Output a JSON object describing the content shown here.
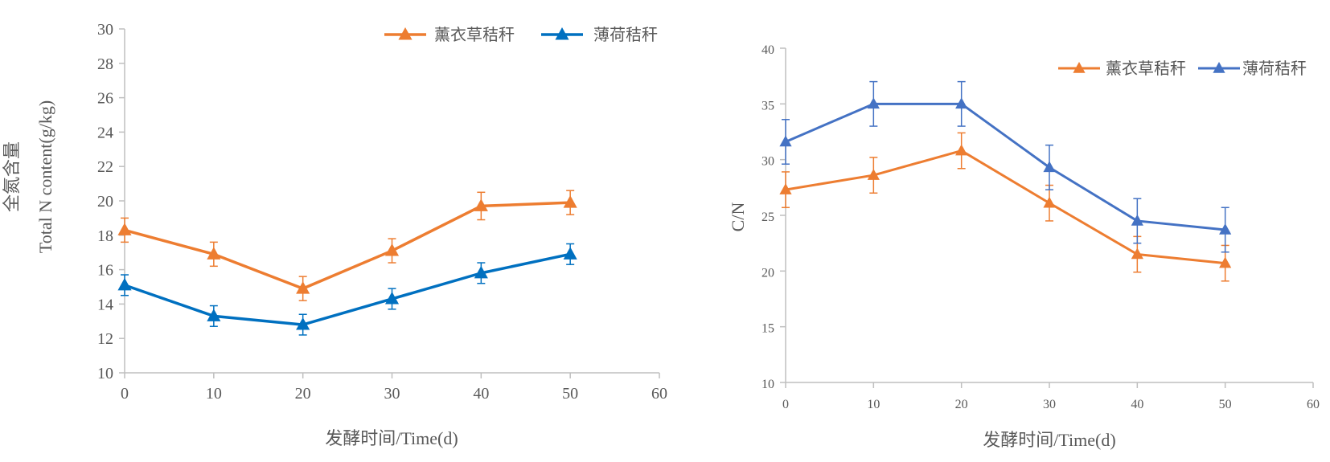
{
  "chart_data": [
    {
      "type": "line",
      "ylabel_line1": "全氮含量",
      "ylabel_line2": "Total N content(g/kg)",
      "xlabel": "发酵时间/Time(d)",
      "xlim": [
        0,
        60
      ],
      "ylim": [
        10,
        30
      ],
      "x_ticks": [
        "0",
        "10",
        "20",
        "30",
        "40",
        "50",
        "60"
      ],
      "y_ticks": [
        "10",
        "12",
        "14",
        "16",
        "18",
        "20",
        "22",
        "24",
        "26",
        "28",
        "30"
      ],
      "legend_position": "top-right",
      "x": [
        0,
        10,
        20,
        30,
        40,
        50
      ],
      "series": [
        {
          "name": "薰衣草秸秆",
          "color": "#ed7d31",
          "values": [
            18.3,
            16.9,
            14.9,
            17.1,
            19.7,
            19.9
          ],
          "errors": [
            0.7,
            0.7,
            0.7,
            0.7,
            0.8,
            0.7
          ]
        },
        {
          "name": "薄荷秸秆",
          "color": "#0070c0",
          "values": [
            15.1,
            13.3,
            12.8,
            14.3,
            15.8,
            16.9
          ],
          "errors": [
            0.6,
            0.6,
            0.6,
            0.6,
            0.6,
            0.6
          ]
        }
      ]
    },
    {
      "type": "line",
      "ylabel_line1": "C/N",
      "ylabel_line2": "",
      "xlabel": "发酵时间/Time(d)",
      "xlim": [
        0,
        60
      ],
      "ylim": [
        10,
        40
      ],
      "x_ticks": [
        "0",
        "10",
        "20",
        "30",
        "40",
        "50",
        "60"
      ],
      "y_ticks": [
        "10",
        "15",
        "20",
        "25",
        "30",
        "35",
        "40"
      ],
      "legend_position": "top-right",
      "x": [
        0,
        10,
        20,
        30,
        40,
        50
      ],
      "series": [
        {
          "name": "薰衣草秸秆",
          "color": "#ed7d31",
          "values": [
            27.3,
            28.6,
            30.8,
            26.1,
            21.5,
            20.7
          ],
          "errors": [
            1.6,
            1.6,
            1.6,
            1.6,
            1.6,
            1.6
          ]
        },
        {
          "name": "薄荷秸秆",
          "color": "#4472c4",
          "values": [
            31.6,
            35.0,
            35.0,
            29.3,
            24.5,
            23.7
          ],
          "errors": [
            2.0,
            2.0,
            2.0,
            2.0,
            2.0,
            2.0
          ]
        }
      ]
    }
  ]
}
